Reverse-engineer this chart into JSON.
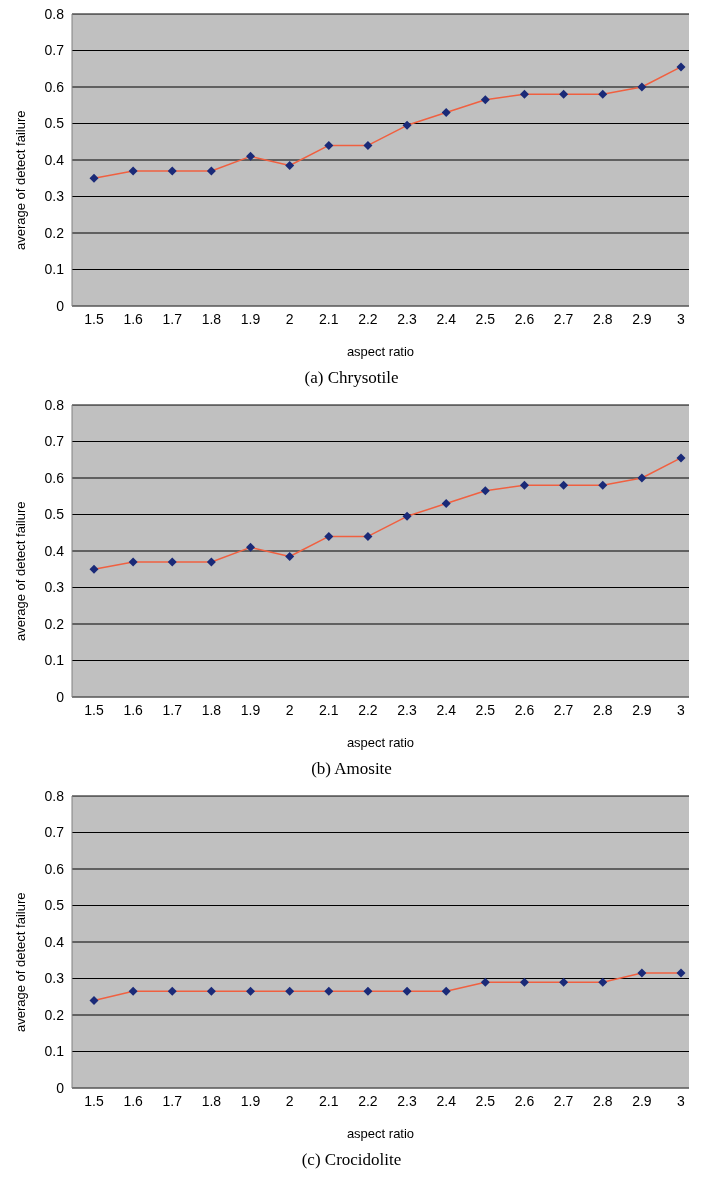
{
  "chart_data": [
    {
      "type": "line",
      "title": "(a) Chrysotile",
      "xlabel": "aspect ratio",
      "ylabel": "average of detect failure",
      "categories": [
        "1.5",
        "1.6",
        "1.7",
        "1.8",
        "1.9",
        "2",
        "2.1",
        "2.2",
        "2.3",
        "2.4",
        "2.5",
        "2.6",
        "2.7",
        "2.8",
        "2.9",
        "3"
      ],
      "values": [
        0.35,
        0.37,
        0.37,
        0.37,
        0.41,
        0.385,
        0.44,
        0.44,
        0.495,
        0.53,
        0.565,
        0.58,
        0.58,
        0.58,
        0.6,
        0.655
      ],
      "color": "#f06040",
      "marker": "diamond",
      "ylim": [
        0,
        0.8
      ],
      "yticks": [
        0,
        0.1,
        0.2,
        0.3,
        0.4,
        0.5,
        0.6,
        0.7,
        0.8
      ],
      "grid": "y"
    },
    {
      "type": "line",
      "title": "(b) Amosite",
      "xlabel": "aspect ratio",
      "ylabel": "average of detect failure",
      "categories": [
        "1.5",
        "1.6",
        "1.7",
        "1.8",
        "1.9",
        "2",
        "2.1",
        "2.2",
        "2.3",
        "2.4",
        "2.5",
        "2.6",
        "2.7",
        "2.8",
        "2.9",
        "3"
      ],
      "values": [
        0.35,
        0.37,
        0.37,
        0.37,
        0.41,
        0.385,
        0.44,
        0.44,
        0.495,
        0.53,
        0.565,
        0.58,
        0.58,
        0.58,
        0.6,
        0.655
      ],
      "color": "#f06040",
      "marker": "diamond",
      "ylim": [
        0,
        0.8
      ],
      "yticks": [
        0,
        0.1,
        0.2,
        0.3,
        0.4,
        0.5,
        0.6,
        0.7,
        0.8
      ],
      "grid": "y"
    },
    {
      "type": "line",
      "title": "(c) Crocidolite",
      "xlabel": "aspect ratio",
      "ylabel": "average of detect failure",
      "categories": [
        "1.5",
        "1.6",
        "1.7",
        "1.8",
        "1.9",
        "2",
        "2.1",
        "2.2",
        "2.3",
        "2.4",
        "2.5",
        "2.6",
        "2.7",
        "2.8",
        "2.9",
        "3"
      ],
      "values": [
        0.24,
        0.265,
        0.265,
        0.265,
        0.265,
        0.265,
        0.265,
        0.265,
        0.265,
        0.265,
        0.29,
        0.29,
        0.29,
        0.29,
        0.315,
        0.315
      ],
      "color": "#f06040",
      "marker": "diamond",
      "ylim": [
        0,
        0.8
      ],
      "yticks": [
        0,
        0.1,
        0.2,
        0.3,
        0.4,
        0.5,
        0.6,
        0.7,
        0.8
      ],
      "grid": "y"
    }
  ]
}
